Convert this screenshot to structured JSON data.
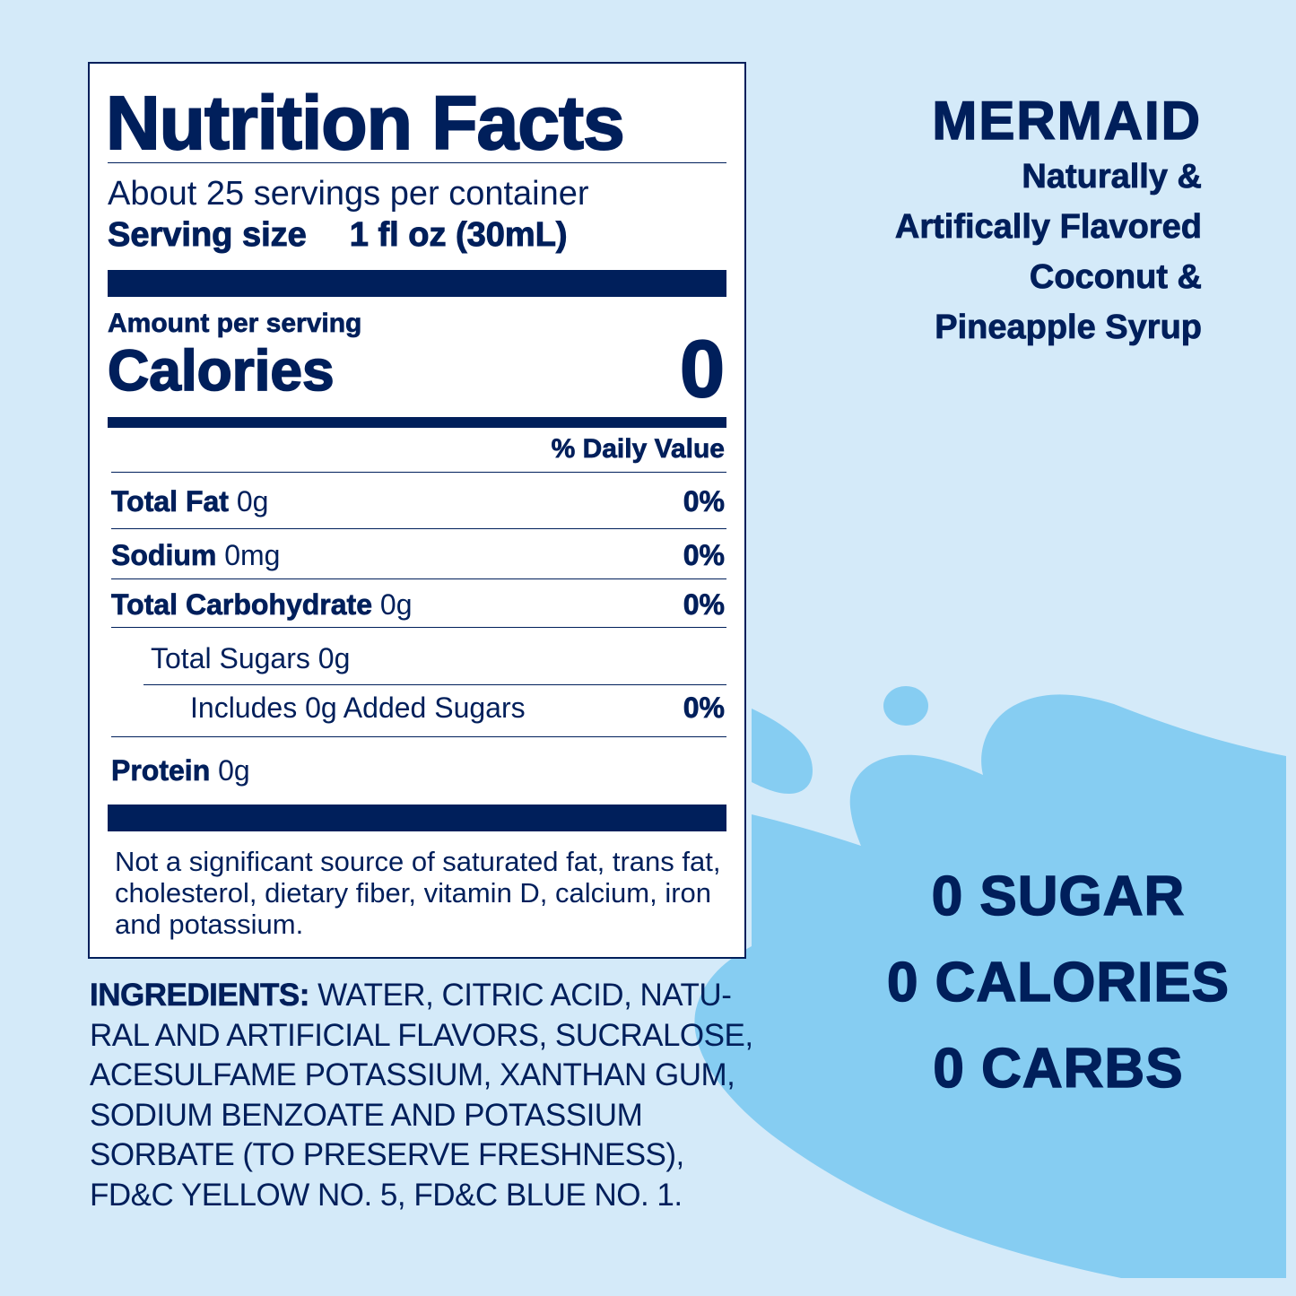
{
  "colors": {
    "background": "#d4eaf9",
    "splash": "#86cdf2",
    "navy": "#001f5b",
    "label_bg": "#ffffff"
  },
  "nutrition": {
    "title": "Nutrition Facts",
    "servings_per_container": "About 25 servings per container",
    "serving_size_label": "Serving size",
    "serving_size_value": "1 fl oz (30mL)",
    "amount_per_serving": "Amount per serving",
    "calories_label": "Calories",
    "calories_value": "0",
    "daily_value_header": "% Daily Value",
    "rows": [
      {
        "name": "Total Fat",
        "amount": "0g",
        "dv": "0%"
      },
      {
        "name": "Sodium",
        "amount": "0mg",
        "dv": "0%"
      },
      {
        "name": "Total Carbohydrate",
        "amount": "0g",
        "dv": "0%"
      },
      {
        "name": "",
        "amount": "Total Sugars 0g",
        "dv": ""
      },
      {
        "name": "",
        "amount": "Includes 0g Added Sugars",
        "dv": "0%"
      },
      {
        "name": "Protein",
        "amount": "0g",
        "dv": ""
      }
    ],
    "footnote": "Not a significant source of saturated fat, trans fat, cholesterol, dietary fiber, vitamin D, calcium, iron and potassium."
  },
  "ingredients": {
    "label": "INGREDIENTS:",
    "text": " WATER, CITRIC ACID, NATU-RAL AND ARTIFICIAL FLAVORS, SUCRALOSE, ACESULFAME POTASSIUM, XANTHAN GUM, SODIUM BENZOATE AND POTASSIUM SORBATE (TO PRESERVE FRESHNESS), FD&C YELLOW NO. 5, FD&C BLUE NO. 1."
  },
  "brand": {
    "name": "MERMAID",
    "desc_lines": [
      "Naturally &",
      "Artifically Flavored",
      "Coconut &",
      "Pineapple Syrup"
    ]
  },
  "claims": [
    "0 SUGAR",
    "0 CALORIES",
    "0 CARBS"
  ]
}
